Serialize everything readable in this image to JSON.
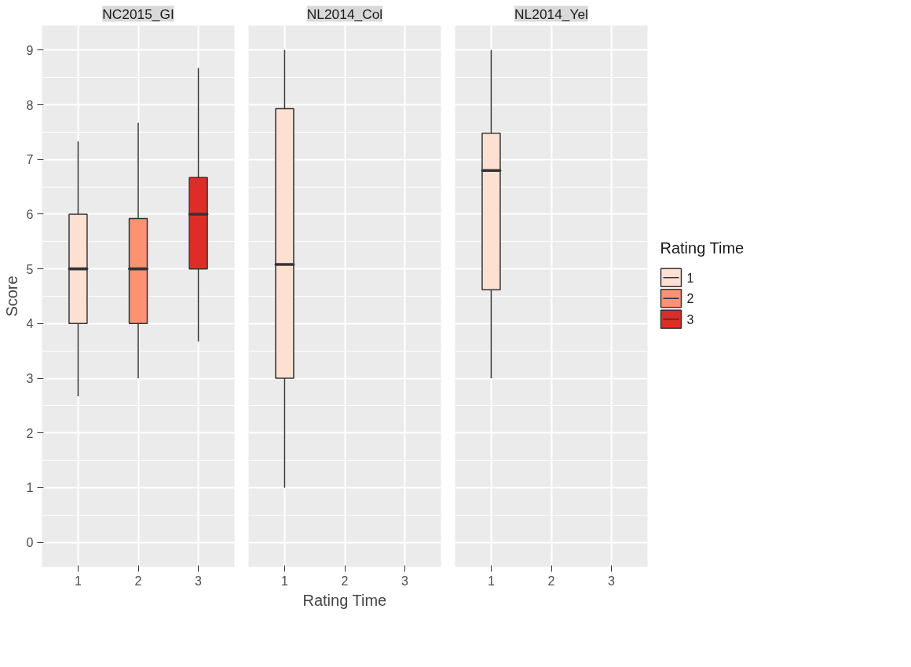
{
  "chart_data": [
    {
      "type": "box",
      "title": "NC2015_GI",
      "ylabel": "Score",
      "categories": [
        "1",
        "2",
        "3"
      ],
      "ylim": [
        -0.45,
        9.45
      ],
      "yticks": [
        0,
        1,
        2,
        3,
        4,
        5,
        6,
        7,
        8,
        9
      ],
      "grid": true,
      "legend": false,
      "series": [
        {
          "color": "#fee0d2",
          "boxes": [
            {
              "low": 2.67,
              "q1": 4,
              "median": 5,
              "q3": 6,
              "high": 7.33
            },
            null,
            null
          ]
        },
        {
          "color": "#fc9272",
          "boxes": [
            null,
            {
              "low": 3,
              "q1": 4,
              "median": 5,
              "q3": 5.92,
              "high": 7.67
            },
            null
          ]
        },
        {
          "color": "#de2d26",
          "boxes": [
            null,
            null,
            {
              "low": 3.67,
              "q1": 5,
              "median": 6,
              "q3": 6.67,
              "high": 8.67
            }
          ]
        }
      ]
    },
    {
      "type": "box",
      "title": "NL2014_Col",
      "xlabel": "Rating Time",
      "categories": [
        "1",
        "2",
        "3"
      ],
      "ylim": [
        -0.45,
        9.45
      ],
      "yticks": [
        0,
        1,
        2,
        3,
        4,
        5,
        6,
        7,
        8,
        9
      ],
      "grid": true,
      "legend": false,
      "tick_labels": "x",
      "series": [
        {
          "color": "#fee0d2",
          "boxes": [
            {
              "low": 1,
              "q1": 3,
              "median": 5.08,
              "q3": 7.93,
              "high": 9
            },
            null,
            null
          ]
        }
      ]
    },
    {
      "type": "box",
      "title": "NL2014_Yel",
      "legend_title": "Rating Time",
      "categories": [
        "1",
        "2",
        "3"
      ],
      "ylim": [
        -0.45,
        9.45
      ],
      "yticks": [
        0,
        1,
        2,
        3,
        4,
        5,
        6,
        7,
        8,
        9
      ],
      "grid": true,
      "legend": "right",
      "tick_labels": "x",
      "series": [
        {
          "name": "1",
          "color": "#fee0d2",
          "boxes": [
            {
              "low": 3,
              "q1": 4.62,
              "median": 6.8,
              "q3": 7.48,
              "high": 9
            },
            null,
            null
          ]
        },
        {
          "name": "2",
          "color": "#fc9272",
          "boxes": [
            null,
            null,
            null
          ]
        },
        {
          "name": "3",
          "color": "#de2d26",
          "boxes": [
            null,
            null,
            null
          ]
        }
      ]
    }
  ]
}
